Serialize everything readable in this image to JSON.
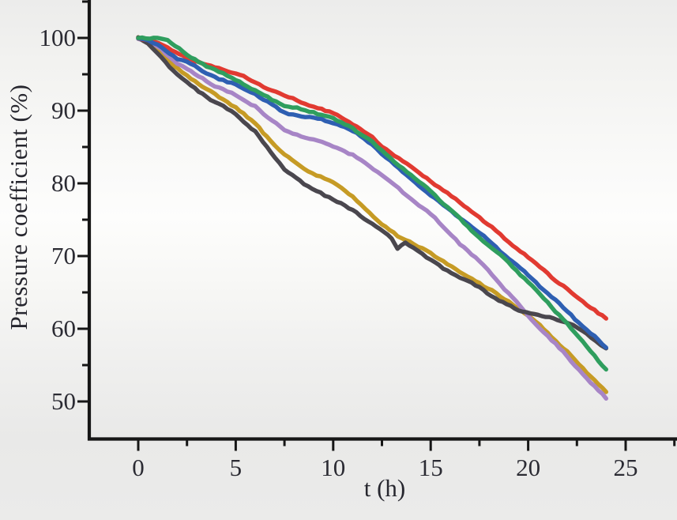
{
  "chart_data": {
    "type": "line",
    "title": "",
    "xlabel": "t (h)",
    "ylabel": "Pressure coefficient (%)",
    "xticks": [
      0,
      5,
      10,
      15,
      20,
      25
    ],
    "yticks": [
      100,
      90,
      80,
      70,
      60,
      50
    ],
    "xminor": [
      2.5,
      7.5,
      12.5,
      17.5,
      22.5,
      27.5
    ],
    "yminor": [
      55,
      65,
      75,
      85,
      95,
      105
    ],
    "xlim": [
      -2.5,
      27.6
    ],
    "ylim": [
      46,
      105.5
    ],
    "grid": false,
    "legend": "none",
    "axis_color": "#161616",
    "series": [
      {
        "name": "gold",
        "color": "#c69b25",
        "points": [
          [
            0,
            100
          ],
          [
            0.5,
            99.4
          ],
          [
            1,
            98.4
          ],
          [
            1.8,
            96.2
          ],
          [
            2.5,
            94.9
          ],
          [
            3.5,
            92.9
          ],
          [
            5,
            90.5
          ],
          [
            6,
            88.2
          ],
          [
            7,
            85.2
          ],
          [
            7.5,
            83.9
          ],
          [
            8.5,
            82.0
          ],
          [
            10,
            80.1
          ],
          [
            11,
            78.2
          ],
          [
            12.5,
            74.3
          ],
          [
            13.5,
            72.5
          ],
          [
            15,
            70.4
          ],
          [
            16.5,
            67.8
          ],
          [
            17.5,
            66.3
          ],
          [
            19,
            63.7
          ],
          [
            20,
            61.9
          ],
          [
            21,
            59.4
          ],
          [
            22,
            56.8
          ],
          [
            23,
            54.0
          ],
          [
            24,
            51.3
          ]
        ]
      },
      {
        "name": "purple",
        "color": "#a785c6",
        "points": [
          [
            0,
            100
          ],
          [
            0.5,
            99.5
          ],
          [
            1,
            98.8
          ],
          [
            2,
            96.6
          ],
          [
            2.5,
            95.8
          ],
          [
            3.5,
            94.0
          ],
          [
            5,
            92.1
          ],
          [
            6,
            90.6
          ],
          [
            7.5,
            87.2
          ],
          [
            9,
            86.0
          ],
          [
            10,
            85.1
          ],
          [
            11,
            83.9
          ],
          [
            12.5,
            81.2
          ],
          [
            14,
            77.8
          ],
          [
            15,
            75.8
          ],
          [
            16.5,
            71.7
          ],
          [
            17.5,
            69.3
          ],
          [
            19,
            64.9
          ],
          [
            20,
            61.8
          ],
          [
            21,
            59.0
          ],
          [
            22,
            56.2
          ],
          [
            23,
            53.2
          ],
          [
            24,
            50.4
          ]
        ]
      },
      {
        "name": "dark-gray",
        "color": "#4a474e",
        "points": [
          [
            0,
            100
          ],
          [
            0.5,
            99.2
          ],
          [
            1,
            97.9
          ],
          [
            2,
            94.9
          ],
          [
            2.5,
            93.9
          ],
          [
            3.5,
            91.9
          ],
          [
            5,
            89.5
          ],
          [
            6,
            87.1
          ],
          [
            7,
            83.6
          ],
          [
            7.5,
            81.9
          ],
          [
            8.5,
            79.9
          ],
          [
            10,
            77.8
          ],
          [
            11,
            76.3
          ],
          [
            12,
            74.4
          ],
          [
            13,
            72.4
          ],
          [
            13.3,
            71.0
          ],
          [
            13.7,
            71.9
          ],
          [
            15,
            69.4
          ],
          [
            16.5,
            67.0
          ],
          [
            17.5,
            65.7
          ],
          [
            18.5,
            63.9
          ],
          [
            19.5,
            62.6
          ],
          [
            20.5,
            61.9
          ],
          [
            21.5,
            61.2
          ],
          [
            22.3,
            60.6
          ],
          [
            23,
            59.3
          ],
          [
            23.5,
            58.2
          ],
          [
            24,
            57.3
          ]
        ]
      },
      {
        "name": "red",
        "color": "#e13a31",
        "points": [
          [
            0,
            100
          ],
          [
            0.5,
            99.8
          ],
          [
            1,
            99.3
          ],
          [
            1.5,
            98.6
          ],
          [
            2.5,
            97.3
          ],
          [
            3.5,
            96.2
          ],
          [
            5,
            95.2
          ],
          [
            6,
            93.9
          ],
          [
            7.5,
            92.0
          ],
          [
            9,
            90.6
          ],
          [
            10,
            89.6
          ],
          [
            11,
            88.2
          ],
          [
            12,
            86.3
          ],
          [
            12.5,
            85.1
          ],
          [
            14,
            82.3
          ],
          [
            15,
            80.3
          ],
          [
            16.5,
            77.3
          ],
          [
            17.5,
            75.3
          ],
          [
            19,
            72.0
          ],
          [
            20,
            69.8
          ],
          [
            21,
            67.6
          ],
          [
            22,
            65.4
          ],
          [
            23,
            63.4
          ],
          [
            24,
            61.4
          ]
        ]
      },
      {
        "name": "blue",
        "color": "#2e5fb2",
        "points": [
          [
            0,
            100
          ],
          [
            0.5,
            99.6
          ],
          [
            1,
            99.0
          ],
          [
            2,
            97.2
          ],
          [
            2.5,
            96.7
          ],
          [
            3.5,
            95.1
          ],
          [
            5,
            93.5
          ],
          [
            6,
            92.3
          ],
          [
            7.5,
            89.7
          ],
          [
            9,
            89.0
          ],
          [
            10,
            88.4
          ],
          [
            11,
            87.2
          ],
          [
            12,
            85.4
          ],
          [
            12.5,
            84.0
          ],
          [
            14,
            80.6
          ],
          [
            15,
            78.3
          ],
          [
            16.5,
            75.3
          ],
          [
            17.5,
            73.2
          ],
          [
            19,
            69.7
          ],
          [
            20,
            67.4
          ],
          [
            21,
            64.9
          ],
          [
            22,
            62.4
          ],
          [
            23,
            59.9
          ],
          [
            24,
            57.4
          ]
        ]
      },
      {
        "name": "green",
        "color": "#2f9e5e",
        "points": [
          [
            0,
            100
          ],
          [
            1,
            100
          ],
          [
            1.5,
            99.7
          ],
          [
            2.5,
            97.7
          ],
          [
            3.5,
            96.1
          ],
          [
            5,
            94.3
          ],
          [
            6,
            92.7
          ],
          [
            7.5,
            90.7
          ],
          [
            9,
            89.8
          ],
          [
            10,
            88.9
          ],
          [
            11,
            87.6
          ],
          [
            12,
            85.7
          ],
          [
            12.5,
            84.4
          ],
          [
            14,
            81.1
          ],
          [
            15,
            78.9
          ],
          [
            16.5,
            75.1
          ],
          [
            17.5,
            72.5
          ],
          [
            19,
            69.1
          ],
          [
            20,
            66.4
          ],
          [
            21,
            63.6
          ],
          [
            22,
            60.7
          ],
          [
            23,
            57.6
          ],
          [
            24,
            54.4
          ]
        ]
      }
    ]
  }
}
